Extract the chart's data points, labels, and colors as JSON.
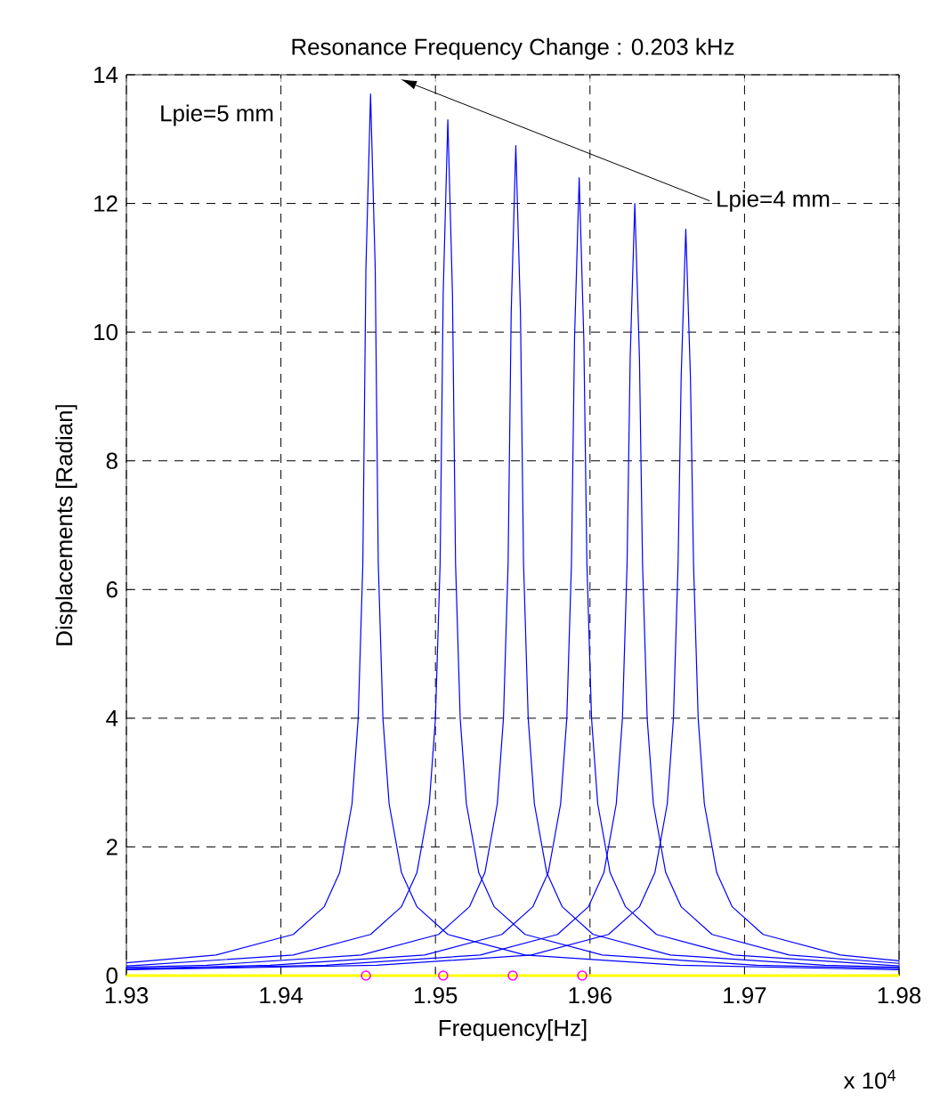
{
  "chart_data": {
    "type": "line",
    "title": "Resonance Frequency Change : 0.203 kHz",
    "xlabel": "Frequency[Hz]",
    "ylabel": "Displacements [Radian]",
    "annotations": [
      "Lpie=5 mm",
      "Lpie=4 mm",
      "x 10$^{4}$"
    ],
    "xlim": [
      1.93,
      1.98
    ],
    "ylim": [
      0,
      14
    ],
    "xticks": [
      1.93,
      1.94,
      1.95,
      1.96,
      1.97,
      1.98
    ],
    "yticks": [
      0,
      2,
      4,
      6,
      8,
      10,
      12,
      14
    ],
    "grid": true,
    "series": [
      {
        "color": "#0000ff",
        "x": [
          1.93,
          1.9358,
          1.9408,
          1.9428,
          1.9438,
          1.9446,
          1.945,
          1.9453,
          1.9455,
          1.9458,
          1.9461,
          1.9463,
          1.9466,
          1.947,
          1.9478,
          1.9488,
          1.9508,
          1.9558,
          1.9658,
          1.98
        ],
        "values": [
          0.2,
          0.32,
          0.64,
          1.07,
          1.6,
          2.67,
          4,
          6.4,
          11,
          13.7,
          11,
          6.4,
          4,
          2.67,
          1.6,
          1.07,
          0.64,
          0.32,
          0.16,
          0.09
        ]
      },
      {
        "color": "#0000ff",
        "x": [
          1.93,
          1.9308,
          1.9408,
          1.9458,
          1.9478,
          1.9488,
          1.9496,
          1.95,
          1.9503,
          1.9505,
          1.9508,
          1.9511,
          1.9513,
          1.9516,
          1.952,
          1.9528,
          1.9538,
          1.9558,
          1.9608,
          1.9708,
          1.98
        ],
        "values": [
          0.15,
          0.16,
          0.32,
          0.64,
          1.07,
          1.6,
          2.67,
          4,
          6.4,
          10.6,
          13.3,
          10.6,
          6.4,
          4,
          2.67,
          1.6,
          1.07,
          0.64,
          0.32,
          0.16,
          0.11
        ]
      },
      {
        "color": "#0000ff",
        "x": [
          1.93,
          1.9352,
          1.9452,
          1.9502,
          1.9522,
          1.9532,
          1.954,
          1.9544,
          1.9547,
          1.9549,
          1.9552,
          1.9555,
          1.9557,
          1.956,
          1.9564,
          1.9572,
          1.9582,
          1.9602,
          1.9652,
          1.9752,
          1.98
        ],
        "values": [
          0.13,
          0.16,
          0.32,
          0.64,
          1.07,
          1.6,
          2.67,
          4,
          6.4,
          10.3,
          12.9,
          10.3,
          6.4,
          4,
          2.67,
          1.6,
          1.07,
          0.64,
          0.32,
          0.16,
          0.13
        ]
      },
      {
        "color": "#0000ff",
        "x": [
          1.93,
          1.9393,
          1.9493,
          1.9543,
          1.9563,
          1.9573,
          1.9581,
          1.9585,
          1.9588,
          1.959,
          1.9593,
          1.9596,
          1.9598,
          1.9601,
          1.9605,
          1.9613,
          1.9623,
          1.9643,
          1.9693,
          1.9793,
          1.98
        ],
        "values": [
          0.11,
          0.16,
          0.32,
          0.64,
          1.07,
          1.6,
          2.67,
          4,
          6.4,
          9.9,
          12.4,
          9.9,
          6.4,
          4,
          2.67,
          1.6,
          1.07,
          0.64,
          0.32,
          0.16,
          0.15
        ]
      },
      {
        "color": "#0000ff",
        "x": [
          1.93,
          1.9429,
          1.9529,
          1.9579,
          1.9599,
          1.9609,
          1.9617,
          1.9621,
          1.9624,
          1.9626,
          1.9629,
          1.9632,
          1.9634,
          1.9637,
          1.9641,
          1.9649,
          1.9659,
          1.9679,
          1.9729,
          1.98
        ],
        "values": [
          0.1,
          0.16,
          0.32,
          0.64,
          1.07,
          1.6,
          2.67,
          4,
          6.4,
          9.6,
          12.0,
          9.6,
          6.4,
          4,
          2.67,
          1.6,
          1.07,
          0.64,
          0.32,
          0.19
        ]
      },
      {
        "color": "#0000ff",
        "x": [
          1.93,
          1.9462,
          1.9562,
          1.9612,
          1.9632,
          1.9642,
          1.965,
          1.9654,
          1.9657,
          1.9659,
          1.9662,
          1.9665,
          1.9667,
          1.967,
          1.9674,
          1.9682,
          1.9692,
          1.9712,
          1.9762,
          1.98
        ],
        "values": [
          0.09,
          0.16,
          0.32,
          0.64,
          1.07,
          1.6,
          2.67,
          4,
          6.4,
          9.3,
          11.6,
          9.3,
          6.4,
          4,
          2.67,
          1.6,
          1.07,
          0.64,
          0.32,
          0.23
        ]
      },
      {
        "color": "#ffff00",
        "x": [
          1.93,
          1.98
        ],
        "values": [
          0,
          0
        ]
      },
      {
        "type": "scatter",
        "marker": "circle",
        "color": "#ff00ff",
        "x": [
          1.9455,
          1.9505,
          1.955,
          1.9595
        ],
        "values": [
          0,
          0,
          0,
          0
        ]
      }
    ]
  }
}
